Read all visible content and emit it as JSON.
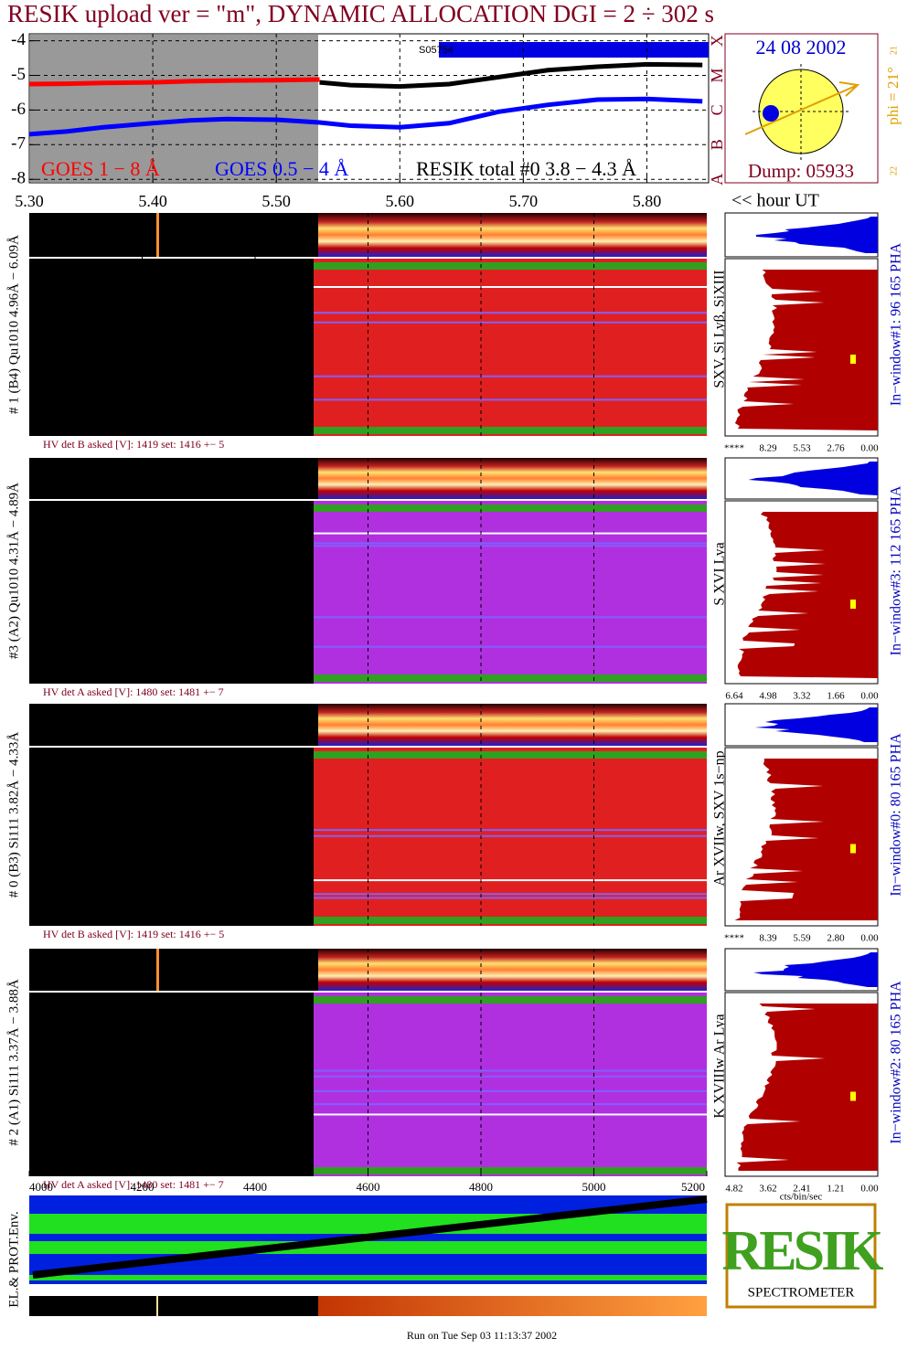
{
  "title": "RESIK upload ver = \"m\", DYNAMIC ALLOCATION  DGI =   2 ÷ 302 s",
  "chart_data": {
    "type": "line",
    "x": [
      5.3,
      5.33,
      5.36,
      5.4,
      5.43,
      5.46,
      5.5,
      5.535,
      5.56,
      5.6,
      5.64,
      5.68,
      5.72,
      5.76,
      5.8,
      5.845
    ],
    "series": [
      {
        "name": "GOES 1 − 8 Å",
        "color": "#ff0000",
        "values": [
          -5.25,
          -5.24,
          -5.22,
          -5.2,
          -5.17,
          -5.15,
          -5.14,
          -5.12,
          null,
          null,
          null,
          null,
          null,
          null,
          null,
          null
        ]
      },
      {
        "name": "GOES 0.5 − 4 Å",
        "color": "#0000ff",
        "values": [
          -6.7,
          -6.62,
          -6.5,
          -6.38,
          -6.3,
          -6.26,
          -6.28,
          -6.36,
          -6.45,
          -6.5,
          -6.38,
          -6.05,
          -5.85,
          -5.7,
          -5.68,
          -5.75
        ]
      },
      {
        "name": "RESIK total #0  3.8 − 4.3 Å",
        "color": "#000000",
        "values": [
          null,
          null,
          null,
          null,
          null,
          null,
          null,
          -5.2,
          -5.28,
          -5.32,
          -5.25,
          -5.05,
          -4.85,
          -4.75,
          -4.68,
          -4.7
        ]
      }
    ],
    "xlim": [
      5.3,
      5.85
    ],
    "xticks": [
      {
        "value": 5.3,
        "label": "5.30"
      },
      {
        "value": 5.4,
        "label": "5.40"
      },
      {
        "value": 5.5,
        "label": "5.50"
      },
      {
        "value": 5.6,
        "label": "5.60"
      },
      {
        "value": 5.7,
        "label": "5.70"
      },
      {
        "value": 5.8,
        "label": "5.80"
      }
    ],
    "ylim": [
      -8.1,
      -3.8
    ],
    "yticks": [
      -4,
      -5,
      -6,
      -7,
      -8
    ],
    "grid": true,
    "xlabel": "<< hour UT",
    "annotation": "S05754"
  },
  "flare_box": {
    "date": "24 08 2002",
    "dump": "Dump: 05933",
    "phi": "phi = 21°",
    "classes": [
      "X",
      "M",
      "C",
      "B",
      "A"
    ],
    "hours": [
      "21",
      "22"
    ]
  },
  "panels": [
    {
      "ylabel": "# 1 (B4) Qu1010 4.96Å − 6.09Å",
      "hv": "HV det B asked [V]:  1419 set:  1416 +−   5",
      "lines": "SXV, Si Lyβ, SiXIII",
      "window": "In−window#1:   96 165 PHA",
      "pha_ticks": [
        "****",
        "8.29",
        "5.53",
        "2.76",
        "0.00"
      ]
    },
    {
      "ylabel": "#3 (A2) Qu1010  4.31Å − 4.89Å",
      "hv": "HV det A asked [V]:  1480 set:  1481 +−   7",
      "lines": "S XVI Lya",
      "window": "In−window#3:  112 165 PHA",
      "pha_ticks": [
        "6.64",
        "4.98",
        "3.32",
        "1.66",
        "0.00"
      ]
    },
    {
      "ylabel": "# 0 (B3) Si111  3.82Å − 4.33Å",
      "hv": "HV det B asked [V]:  1419 set:  1416 +−   5",
      "lines": "Ar XVIIw,  SXV 1s−np",
      "window": "In−window#0:   80 165 PHA",
      "pha_ticks": [
        "****",
        "8.39",
        "5.59",
        "2.80",
        "0.00"
      ]
    },
    {
      "ylabel": "# 2 (A1) Si111  3.37Å − 3.88Å",
      "hv": "HV det A asked [V]:  1480 set:  1481 +−   7",
      "lines": "K XVIIIw  Ar Lya",
      "window": "In−window#2:   80 165 PHA",
      "pha_ticks": [
        "4.82",
        "3.62",
        "2.41",
        "1.21",
        "0.00"
      ]
    }
  ],
  "channel_axis": {
    "xlim": [
      4000,
      5200
    ],
    "xticks": [
      4000,
      4200,
      4400,
      4600,
      4800,
      5000,
      5200
    ]
  },
  "pha_unit": "cts/bin/sec",
  "env_label": "EL.& PROT.Env.",
  "logo": {
    "name": "RESIK",
    "caption": "SPECTROMETER"
  },
  "footer": "Run on Tue Sep 03 11:13:37 2002"
}
